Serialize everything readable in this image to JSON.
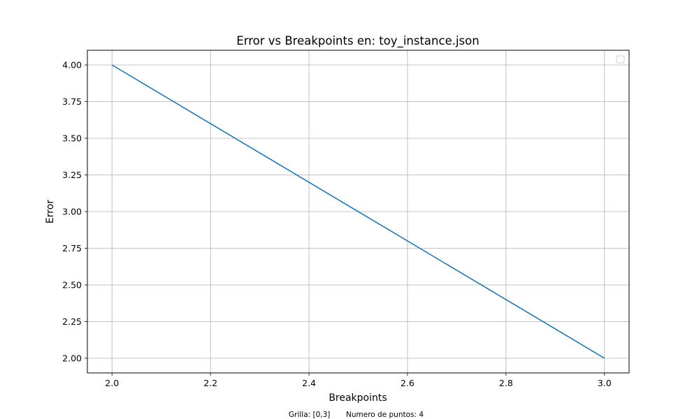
{
  "chart_data": {
    "type": "line",
    "title": "Error vs Breakpoints en: toy_instance.json",
    "xlabel": "Breakpoints",
    "ylabel": "Error",
    "xlim": [
      1.95,
      3.05
    ],
    "ylim": [
      1.9,
      4.1
    ],
    "xticks": [
      2.0,
      2.2,
      2.4,
      2.6,
      2.8,
      3.0
    ],
    "xtick_labels": [
      "2.0",
      "2.2",
      "2.4",
      "2.6",
      "2.8",
      "3.0"
    ],
    "yticks": [
      2.0,
      2.25,
      2.5,
      2.75,
      3.0,
      3.25,
      3.5,
      3.75,
      4.0
    ],
    "ytick_labels": [
      "2.00",
      "2.25",
      "2.50",
      "2.75",
      "3.00",
      "3.25",
      "3.50",
      "3.75",
      "4.00"
    ],
    "grid": true,
    "legend": "top-right",
    "series": [
      {
        "x": [
          2.0,
          3.0
        ],
        "y": [
          4.0,
          2.0
        ],
        "color": "#1f77b4"
      }
    ],
    "footnote": {
      "grid_text": "Grilla: [0,3]",
      "points_text": "Numero de puntos: 4"
    }
  }
}
